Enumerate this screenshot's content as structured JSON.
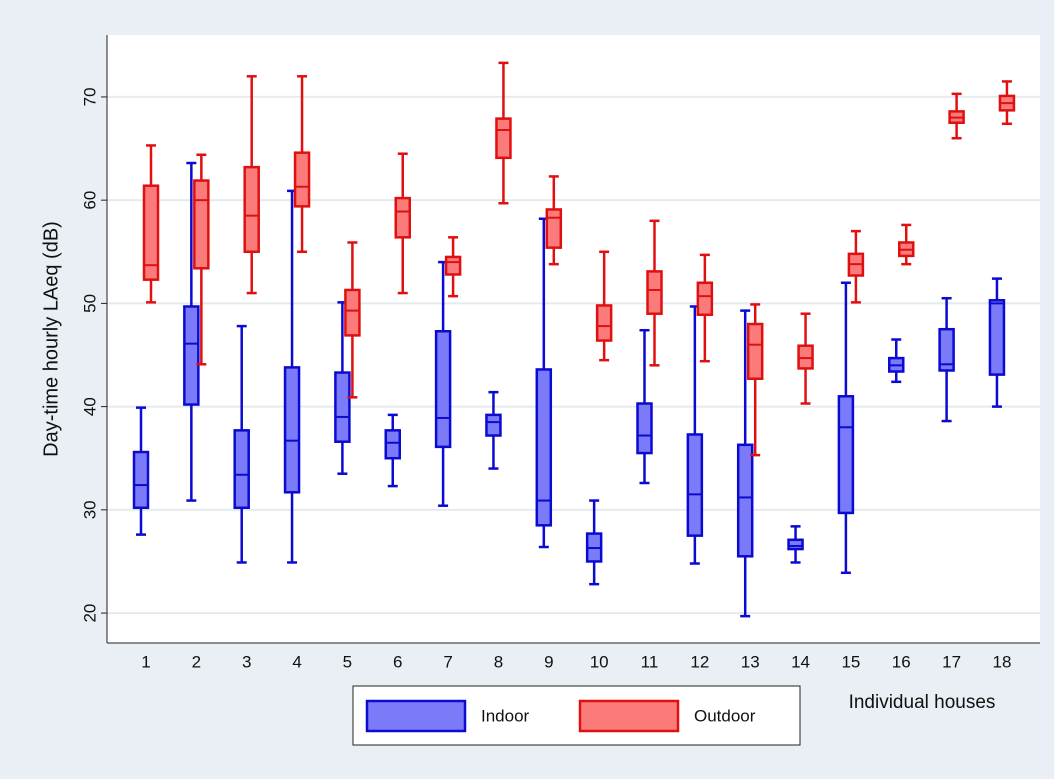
{
  "chart_data": {
    "type": "box",
    "y_label": "Day-time hourly LAeq (dB)",
    "x_label": "Individual houses",
    "categories": [
      "1",
      "2",
      "3",
      "4",
      "5",
      "6",
      "7",
      "8",
      "9",
      "10",
      "11",
      "12",
      "13",
      "14",
      "15",
      "16",
      "17",
      "18"
    ],
    "ylim": [
      17.1,
      76
    ],
    "yticks": [
      20,
      30,
      40,
      50,
      60,
      70
    ],
    "grid": true,
    "legend": "bottom",
    "series": [
      {
        "name": "Indoor",
        "color": "#7b7bfa",
        "edge_color": "#0a0ad0",
        "min": [
          27.6,
          30.9,
          24.9,
          24.9,
          33.5,
          32.3,
          30.4,
          34.0,
          26.4,
          22.8,
          32.6,
          24.8,
          19.7,
          24.9,
          23.9,
          42.4,
          38.6,
          40.0
        ],
        "q1": [
          30.2,
          40.2,
          30.2,
          31.7,
          36.6,
          35.0,
          36.1,
          37.2,
          28.5,
          25.0,
          35.5,
          27.5,
          25.5,
          26.2,
          29.7,
          43.4,
          43.5,
          43.1
        ],
        "median": [
          32.4,
          46.1,
          33.4,
          36.7,
          39.0,
          36.5,
          38.9,
          38.5,
          30.9,
          26.3,
          37.2,
          31.5,
          31.2,
          26.5,
          38.0,
          44.0,
          44.1,
          50.0
        ],
        "q3": [
          35.6,
          49.7,
          37.7,
          43.8,
          43.3,
          37.7,
          47.3,
          39.2,
          43.6,
          27.7,
          40.3,
          37.3,
          36.3,
          27.1,
          41.0,
          44.7,
          47.5,
          50.3
        ],
        "max": [
          39.9,
          63.6,
          47.8,
          60.9,
          50.1,
          39.2,
          54.0,
          41.4,
          58.2,
          30.9,
          47.4,
          49.7,
          49.3,
          28.4,
          52.0,
          46.5,
          50.5,
          52.4
        ]
      },
      {
        "name": "Outdoor",
        "color": "#fb7b7b",
        "edge_color": "#e01010",
        "min": [
          50.1,
          44.1,
          51.0,
          55.0,
          40.9,
          51.0,
          50.7,
          59.7,
          53.8,
          44.5,
          44.0,
          44.4,
          35.3,
          40.3,
          50.1,
          53.8,
          66.0,
          67.4
        ],
        "q1": [
          52.3,
          53.4,
          55.0,
          59.4,
          46.9,
          56.4,
          52.8,
          64.1,
          55.4,
          46.4,
          49.0,
          48.9,
          42.7,
          43.7,
          52.7,
          54.6,
          67.5,
          68.7
        ],
        "median": [
          53.7,
          60.0,
          58.5,
          61.3,
          49.3,
          58.9,
          54.0,
          66.8,
          58.3,
          47.8,
          51.3,
          50.7,
          46.0,
          44.7,
          53.8,
          55.2,
          68.0,
          69.4
        ],
        "q3": [
          61.4,
          61.9,
          63.2,
          64.6,
          51.3,
          60.2,
          54.5,
          67.9,
          59.1,
          49.8,
          53.1,
          52.0,
          48.0,
          45.9,
          54.8,
          55.9,
          68.6,
          70.1
        ],
        "max": [
          65.3,
          64.4,
          72.0,
          72.0,
          55.9,
          64.5,
          56.4,
          73.3,
          62.3,
          55.0,
          58.0,
          54.7,
          49.9,
          49.0,
          57.0,
          57.6,
          70.3,
          71.5
        ]
      }
    ]
  }
}
